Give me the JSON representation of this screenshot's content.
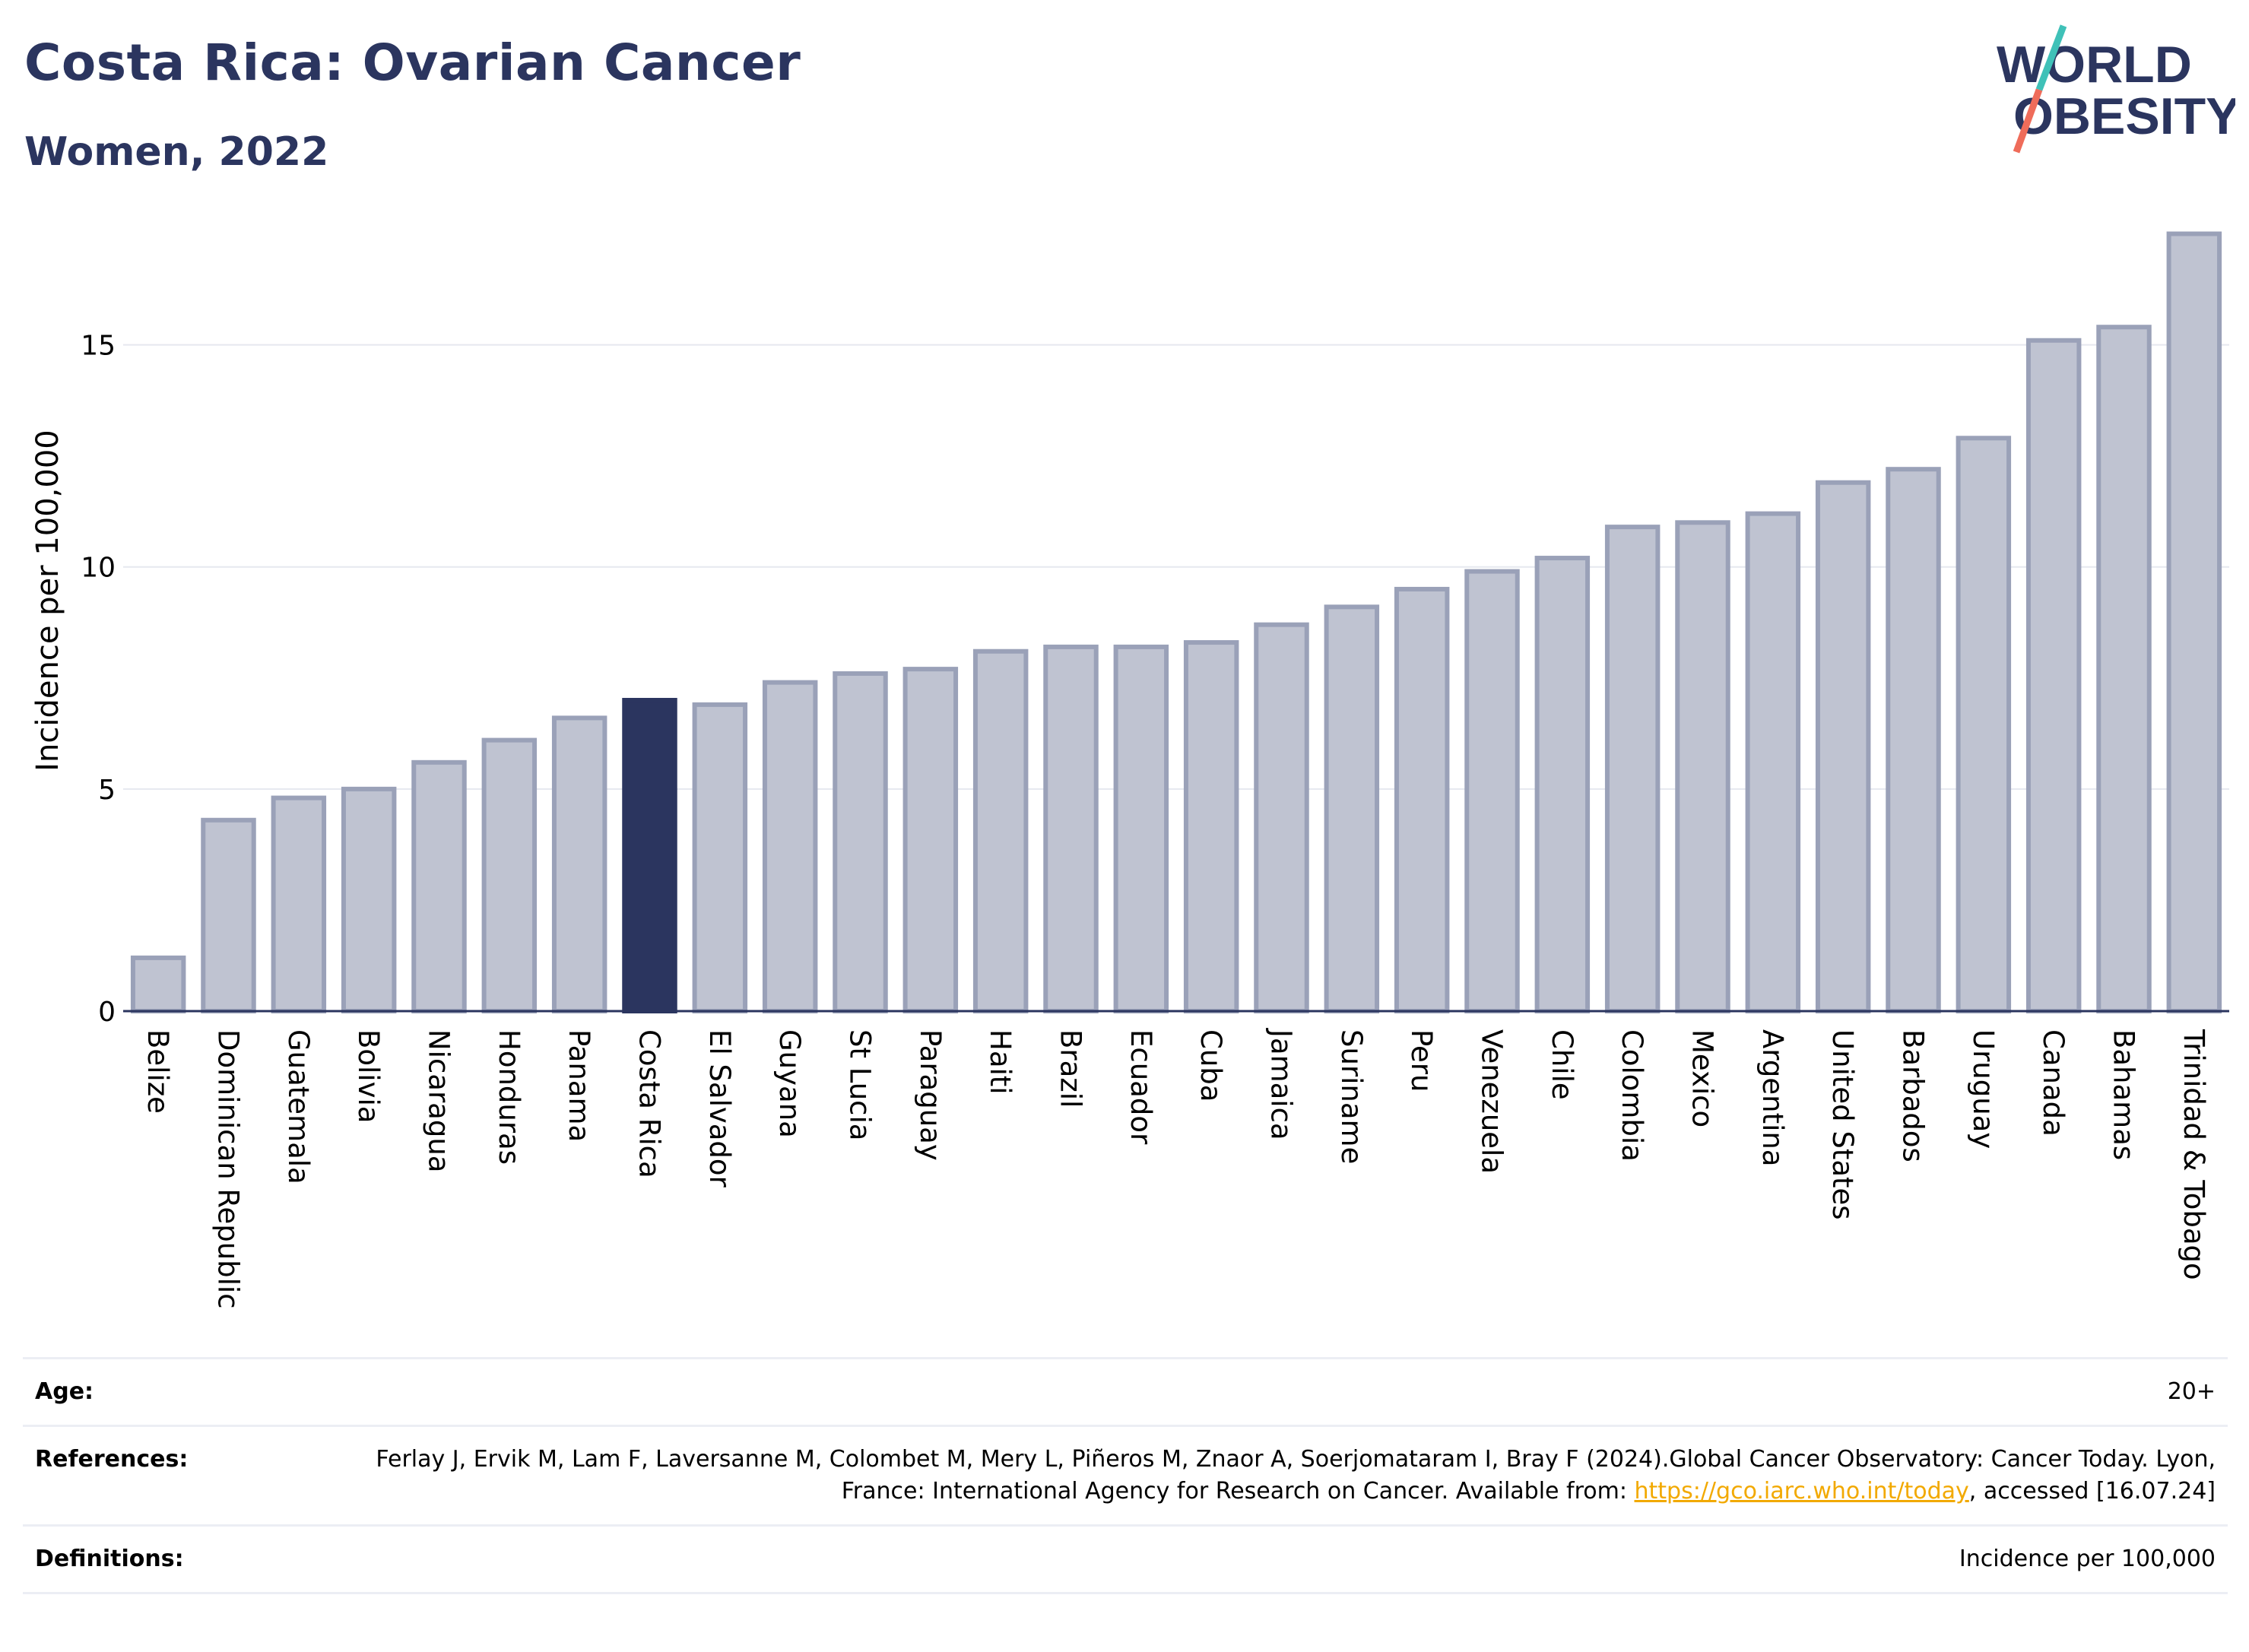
{
  "header": {
    "title": "Costa Rica: Ovarian Cancer",
    "subtitle": "Women, 2022",
    "logo_line1": "WORLD",
    "logo_line2": "OBESITY"
  },
  "colors": {
    "brand_navy": "#2b355f",
    "bar_fill": "#bfc3d1",
    "bar_stroke": "#9aa1b8",
    "highlight": "#2b355f",
    "link": "#f2a900",
    "logo_slash_teal": "#3fc1b8",
    "logo_slash_coral": "#ef6c5a"
  },
  "chart_data": {
    "type": "bar",
    "ylabel": "Incidence per 100,000",
    "ylim": [
      0,
      17.8
    ],
    "yticks": [
      0,
      5,
      10,
      15
    ],
    "grid": true,
    "highlight": "Costa Rica",
    "categories": [
      "Belize",
      "Dominican Republic",
      "Guatemala",
      "Bolivia",
      "Nicaragua",
      "Honduras",
      "Panama",
      "Costa Rica",
      "El Salvador",
      "Guyana",
      "St Lucia",
      "Paraguay",
      "Haiti",
      "Brazil",
      "Ecuador",
      "Cuba",
      "Jamaica",
      "Suriname",
      "Peru",
      "Venezuela",
      "Chile",
      "Colombia",
      "Mexico",
      "Argentina",
      "United States",
      "Barbados",
      "Uruguay",
      "Canada",
      "Bahamas",
      "Trinidad & Tobago"
    ],
    "values": [
      1.2,
      4.3,
      4.8,
      5.0,
      5.6,
      6.1,
      6.6,
      7.0,
      6.9,
      7.4,
      7.6,
      7.7,
      8.1,
      8.2,
      8.2,
      8.3,
      8.7,
      9.1,
      9.5,
      9.9,
      10.2,
      10.9,
      11.0,
      11.2,
      11.9,
      12.2,
      12.9,
      15.1,
      15.4,
      17.5
    ]
  },
  "footer": {
    "age_label": "Age:",
    "age_value": "20+",
    "references_label": "References:",
    "references_text": "Ferlay J, Ervik M, Lam F, Laversanne M, Colombet M, Mery L, Piñeros M, Znaor A, Soerjomataram I, Bray F (2024).Global Cancer Observatory: Cancer Today. Lyon, France: International Agency for Research on Cancer. Available from: ",
    "references_link": "https://gco.iarc.who.int/today",
    "references_suffix": ", accessed [16.07.24]",
    "definitions_label": "Definitions:",
    "definitions_value": "Incidence per 100,000"
  }
}
